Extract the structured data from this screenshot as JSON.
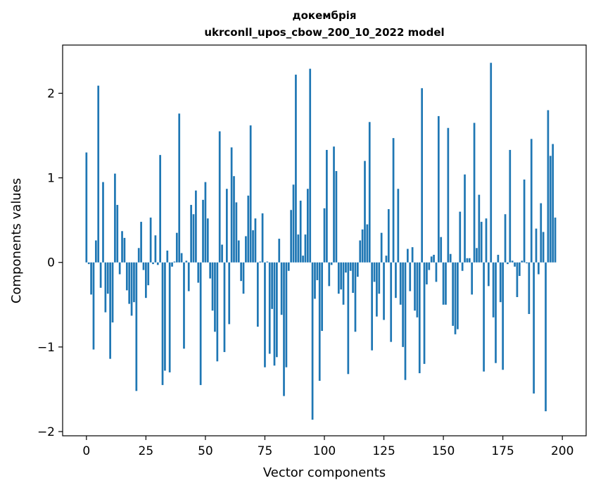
{
  "chart_data": {
    "type": "bar",
    "title": "докембрія",
    "subtitle": "ukrconll_upos_cbow_200_10_2022 model",
    "xlabel": "Vector components",
    "ylabel": "Components values",
    "xlim": [
      -10,
      210
    ],
    "ylim": [
      -2.05,
      2.57
    ],
    "xticks": [
      0,
      25,
      50,
      75,
      100,
      125,
      150,
      175,
      200
    ],
    "yticks": [
      -2,
      -1,
      0,
      1,
      2
    ],
    "xtick_labels": [
      "0",
      "25",
      "50",
      "75",
      "100",
      "125",
      "150",
      "175",
      "200"
    ],
    "ytick_labels": [
      "−2",
      "−1",
      "0",
      "1",
      "2"
    ],
    "grid": false,
    "bar_color": "#1f77b4",
    "values": [
      1.3,
      -0.02,
      -0.38,
      -1.03,
      0.26,
      2.09,
      -0.3,
      0.95,
      -0.59,
      -0.37,
      -1.14,
      -0.71,
      1.05,
      0.68,
      -0.14,
      0.37,
      0.29,
      -0.33,
      -0.49,
      -0.63,
      -0.47,
      -1.52,
      0.17,
      0.48,
      -0.09,
      -0.42,
      -0.27,
      0.53,
      -0.02,
      0.32,
      -0.03,
      1.27,
      -1.45,
      -1.28,
      0.14,
      -1.3,
      -0.05,
      0.01,
      0.35,
      1.76,
      0.11,
      -1.02,
      0.02,
      -0.34,
      0.68,
      0.57,
      0.85,
      -0.24,
      -1.45,
      0.74,
      0.95,
      0.52,
      -0.19,
      -0.57,
      -0.82,
      -1.17,
      1.55,
      0.21,
      -1.06,
      0.87,
      -0.73,
      1.36,
      1.02,
      0.71,
      0.26,
      -0.22,
      -0.37,
      0.31,
      0.79,
      1.62,
      0.38,
      0.52,
      -0.76,
      0.01,
      0.58,
      -1.24,
      0.01,
      -1.08,
      -0.55,
      -1.22,
      -1.12,
      0.28,
      -0.62,
      -1.58,
      -1.24,
      -0.1,
      0.62,
      0.92,
      2.22,
      0.33,
      0.73,
      0.08,
      0.33,
      0.87,
      2.29,
      -1.86,
      -0.43,
      -0.21,
      -1.4,
      -0.81,
      0.64,
      1.33,
      -0.28,
      -0.03,
      1.37,
      1.08,
      -0.37,
      -0.32,
      -0.5,
      -0.12,
      -1.32,
      -0.1,
      -0.36,
      -0.82,
      -0.17,
      0.26,
      0.39,
      1.2,
      0.45,
      1.66,
      -1.04,
      -0.23,
      -0.64,
      -0.37,
      0.35,
      -0.68,
      0.08,
      0.63,
      -0.94,
      1.47,
      -0.42,
      0.87,
      -0.5,
      -1.0,
      -1.39,
      0.16,
      -0.34,
      0.18,
      -0.57,
      -0.65,
      -1.31,
      2.06,
      -1.2,
      -0.26,
      -0.09,
      0.07,
      0.09,
      -0.23,
      1.73,
      0.3,
      -0.5,
      -0.5,
      1.59,
      0.1,
      -0.75,
      -0.85,
      -0.79,
      0.6,
      -0.1,
      1.04,
      0.05,
      0.05,
      -0.38,
      1.65,
      0.17,
      0.8,
      0.48,
      -1.29,
      0.52,
      -0.28,
      2.36,
      -0.65,
      -1.19,
      0.09,
      -0.47,
      -1.27,
      0.57,
      -0.02,
      1.33,
      0.02,
      -0.05,
      -0.41,
      -0.16,
      0.02,
      0.98,
      -0.01,
      -0.61,
      1.46,
      -1.55,
      0.4,
      -0.14,
      0.7,
      0.36,
      -1.76,
      1.8,
      1.26,
      1.4,
      0.53
    ]
  }
}
